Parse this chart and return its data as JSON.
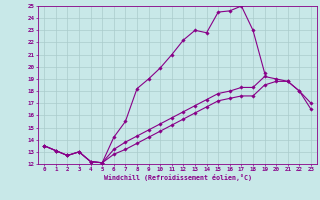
{
  "xlabel": "Windchill (Refroidissement éolien,°C)",
  "background_color": "#c8e8e8",
  "line_color": "#880088",
  "grid_color": "#aacccc",
  "xlim": [
    -0.5,
    23.5
  ],
  "ylim": [
    12,
    25
  ],
  "xtick_labels": [
    "0",
    "1",
    "2",
    "3",
    "4",
    "5",
    "6",
    "7",
    "8",
    "9",
    "10",
    "11",
    "12",
    "13",
    "14",
    "15",
    "16",
    "17",
    "18",
    "19",
    "20",
    "21",
    "22",
    "23"
  ],
  "ytick_labels": [
    "12",
    "13",
    "14",
    "15",
    "16",
    "17",
    "18",
    "19",
    "20",
    "21",
    "22",
    "23",
    "24",
    "25"
  ],
  "lines": [
    {
      "x": [
        0,
        1,
        2,
        3,
        4,
        5,
        6,
        7,
        8,
        9,
        10,
        11,
        12,
        13,
        14,
        15,
        16,
        17,
        18,
        19
      ],
      "y": [
        13.5,
        13.1,
        12.7,
        13.0,
        12.2,
        12.1,
        14.2,
        15.5,
        18.2,
        19.0,
        19.9,
        21.0,
        22.2,
        23.0,
        22.8,
        24.5,
        24.6,
        25.0,
        23.0,
        19.5
      ]
    },
    {
      "x": [
        0,
        1,
        2,
        3,
        4,
        5,
        6,
        7,
        8,
        9,
        10,
        11,
        12,
        13,
        14,
        15,
        16,
        17,
        18,
        19,
        20,
        21,
        22,
        23
      ],
      "y": [
        13.5,
        13.1,
        12.7,
        13.0,
        12.2,
        12.1,
        12.8,
        13.2,
        13.7,
        14.2,
        14.7,
        15.2,
        15.7,
        16.2,
        16.7,
        17.2,
        17.4,
        17.6,
        17.6,
        18.5,
        18.8,
        18.8,
        18.0,
        17.0
      ]
    },
    {
      "x": [
        0,
        1,
        2,
        3,
        4,
        5,
        6,
        7,
        8,
        9,
        10,
        11,
        12,
        13,
        14,
        15,
        16,
        17,
        18,
        19,
        20,
        21,
        22,
        23
      ],
      "y": [
        13.5,
        13.1,
        12.7,
        13.0,
        12.2,
        12.1,
        13.2,
        13.8,
        14.3,
        14.8,
        15.3,
        15.8,
        16.3,
        16.8,
        17.3,
        17.8,
        18.0,
        18.3,
        18.3,
        19.2,
        19.0,
        18.8,
        18.0,
        16.5
      ]
    }
  ]
}
